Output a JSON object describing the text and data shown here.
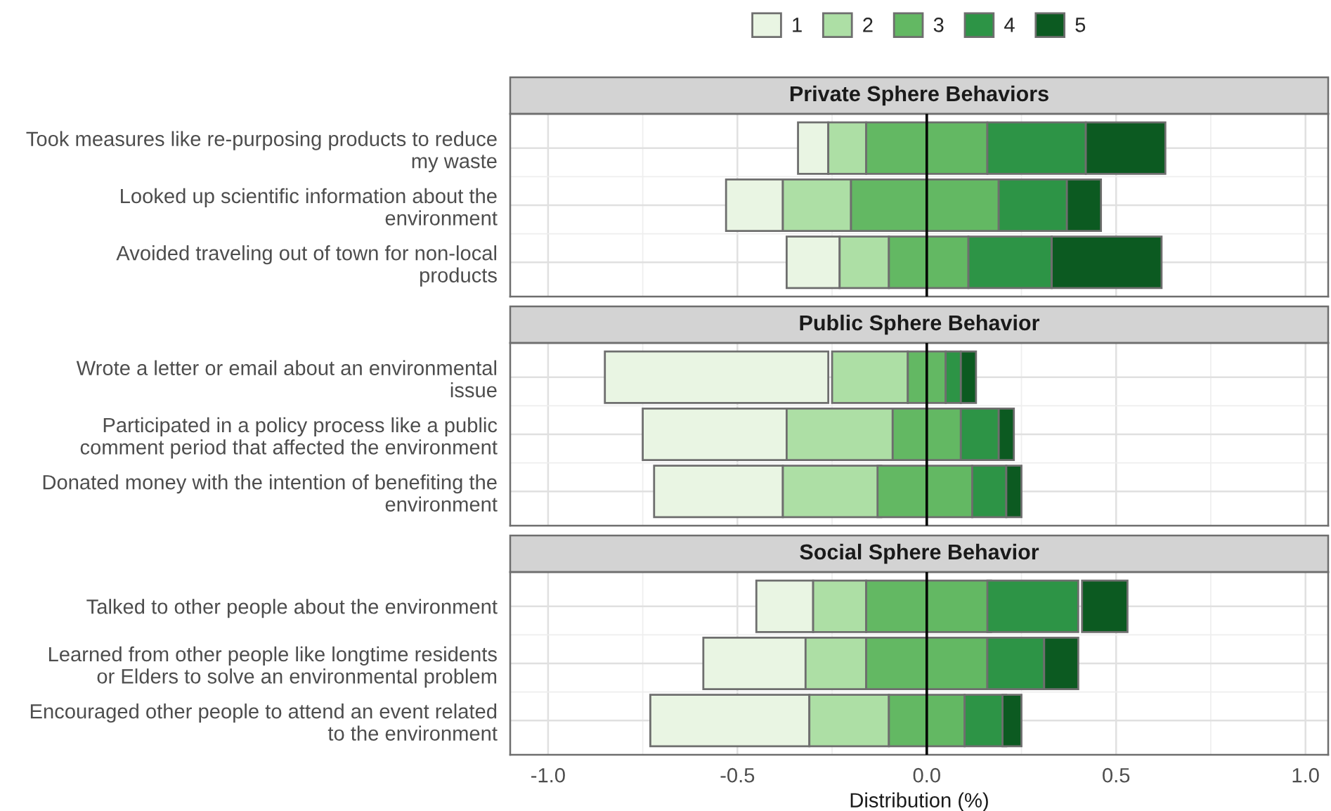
{
  "chart_data": [
    {
      "type": "bar",
      "orientation": "horizontal",
      "title": "Private Sphere Behaviors",
      "categories": [
        "Took measures like re-purposing products to reduce\nmy waste",
        "Looked up scientific information about the\nenvironment",
        "Avoided traveling out of town for non-local\nproducts"
      ],
      "series": [
        {
          "name": "1",
          "color": "#e9f5e3",
          "base": [
            -0.34,
            -0.53,
            -0.37
          ],
          "values": [
            0.08,
            0.15,
            0.14
          ]
        },
        {
          "name": "2",
          "color": "#addfa5",
          "base": [
            -0.26,
            -0.38,
            -0.23
          ],
          "values": [
            0.1,
            0.18,
            0.13
          ]
        },
        {
          "name": "3",
          "color": "#63b863",
          "base": [
            -0.16,
            -0.2,
            -0.1
          ],
          "values": [
            0.32,
            0.39,
            0.21
          ]
        },
        {
          "name": "4",
          "color": "#2d9446",
          "base": [
            0.16,
            0.19,
            0.11
          ],
          "values": [
            0.26,
            0.18,
            0.22
          ]
        },
        {
          "name": "5",
          "color": "#0c5a21",
          "base": [
            0.42,
            0.37,
            0.33
          ],
          "values": [
            0.21,
            0.09,
            0.29
          ]
        }
      ],
      "xlim": [
        -1.1,
        1.06
      ],
      "tick_labels": "y",
      "grid": true,
      "legend": "top",
      "ref_lines": [
        {
          "axis": "x",
          "value": 0,
          "color": "#000000"
        }
      ]
    },
    {
      "type": "bar",
      "orientation": "horizontal",
      "title": "Public Sphere Behavior",
      "categories": [
        "Wrote a letter or email about an environmental\nissue",
        "Participated in a policy process like a public\ncomment period that affected the environment",
        "Donated money with the intention of benefiting the\nenvironment"
      ],
      "series": [
        {
          "color": "#e9f5e3",
          "base": [
            -0.85,
            -0.75,
            -0.72
          ],
          "values": [
            0.59,
            0.38,
            0.34
          ]
        },
        {
          "color": "#addfa5",
          "base": [
            -0.25,
            -0.37,
            -0.38
          ],
          "values": [
            0.2,
            0.28,
            0.26
          ]
        },
        {
          "color": "#63b863",
          "base": [
            -0.05,
            -0.09,
            -0.13
          ],
          "values": [
            0.1,
            0.18,
            0.25
          ]
        },
        {
          "color": "#2d9446",
          "base": [
            0.05,
            0.09,
            0.12
          ],
          "values": [
            0.04,
            0.1,
            0.09
          ]
        },
        {
          "color": "#0c5a21",
          "base": [
            0.09,
            0.19,
            0.21
          ],
          "values": [
            0.04,
            0.04,
            0.04
          ]
        }
      ],
      "xlim": [
        -1.1,
        1.06
      ],
      "tick_labels": "y",
      "grid": true,
      "ref_lines": [
        {
          "axis": "x",
          "value": 0,
          "color": "#000000"
        }
      ]
    },
    {
      "type": "bar",
      "orientation": "horizontal",
      "title": "Social Sphere Behavior",
      "categories": [
        "Talked to other people about the environment",
        "Learned from other people like longtime residents\nor Elders to solve an environmental problem",
        "Encouraged other people to attend an event related\nto the environment"
      ],
      "series": [
        {
          "color": "#e9f5e3",
          "base": [
            -0.45,
            -0.59,
            -0.73
          ],
          "values": [
            0.15,
            0.27,
            0.42
          ]
        },
        {
          "color": "#addfa5",
          "base": [
            -0.3,
            -0.32,
            -0.31
          ],
          "values": [
            0.14,
            0.16,
            0.21
          ]
        },
        {
          "color": "#63b863",
          "base": [
            -0.16,
            -0.16,
            -0.1
          ],
          "values": [
            0.33,
            0.32,
            0.2
          ]
        },
        {
          "color": "#2d9446",
          "base": [
            0.16,
            0.16,
            0.1
          ],
          "values": [
            0.24,
            0.15,
            0.11
          ]
        },
        {
          "color": "#0c5a21",
          "base": [
            0.41,
            0.31,
            0.2
          ],
          "values": [
            0.12,
            0.09,
            0.05
          ]
        }
      ],
      "xlim": [
        -1.1,
        1.06
      ],
      "xticks": [
        {
          "value": -1,
          "label": "-1.0"
        },
        -0.5,
        {
          "value": 0,
          "label": "0.0"
        },
        0.5,
        {
          "value": 1,
          "label": "1.0"
        }
      ],
      "xlabel": "Distribution (%)",
      "grid": true,
      "ref_lines": [
        {
          "axis": "x",
          "value": 0,
          "color": "#000000"
        }
      ]
    }
  ]
}
